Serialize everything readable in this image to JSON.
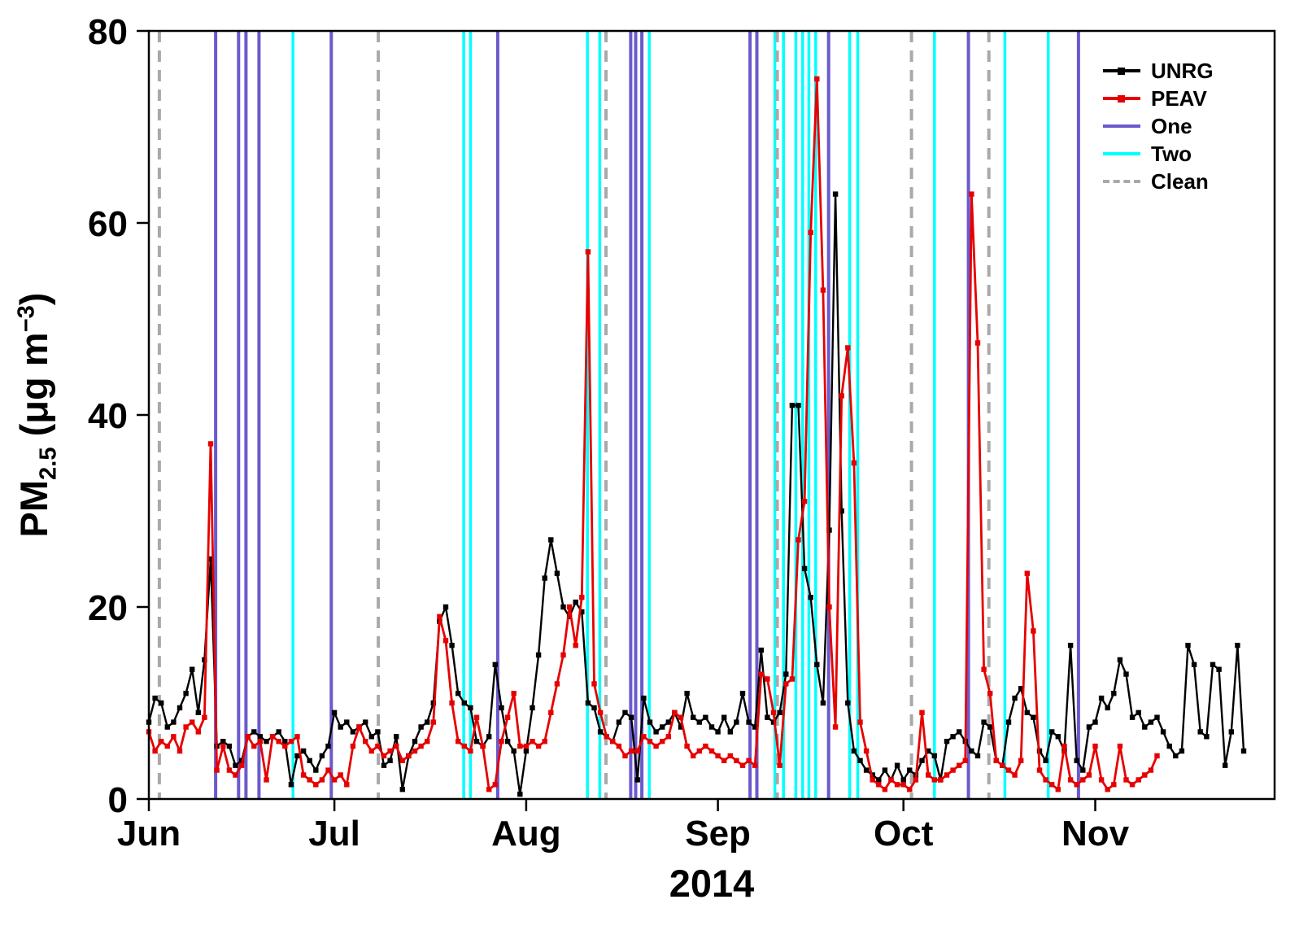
{
  "figure": {
    "x_axis": {
      "title": "2014",
      "tick_labels": [
        "Jun",
        "Jul",
        "Aug",
        "Sep",
        "Oct",
        "Nov"
      ],
      "tick_days": [
        0,
        30,
        61,
        92,
        122,
        153
      ]
    },
    "y_axis": {
      "label_prefix": "PM",
      "label_sub": "2.5",
      "label_mid": " (μg m",
      "label_sup": "−3",
      "label_close": ")",
      "ticks": [
        0,
        20,
        40,
        60,
        80
      ]
    }
  },
  "legend": {
    "items": [
      {
        "label": "UNRG",
        "color": "#000000",
        "style": "solid",
        "marker": "square"
      },
      {
        "label": "PEAV",
        "color": "#e60000",
        "style": "solid",
        "marker": "square"
      },
      {
        "label": "One",
        "color": "#6A5ACD",
        "style": "solid",
        "marker": "none"
      },
      {
        "label": "Two",
        "color": "#00FFFF",
        "style": "solid",
        "marker": "none"
      },
      {
        "label": "Clean",
        "color": "#A9A9A9",
        "style": "dashed",
        "marker": "none"
      }
    ]
  },
  "chart_data": {
    "type": "line",
    "title": "",
    "xlabel": "2014",
    "ylabel": "PM2.5 (μg m−3)",
    "x_unit": "days since 2014-06-01 (daily values, Jun 1 – Nov 25)",
    "x_range_days": [
      0,
      182
    ],
    "ylim": [
      0,
      80
    ],
    "x_tick_labels": [
      "Jun",
      "Jul",
      "Aug",
      "Sep",
      "Oct",
      "Nov"
    ],
    "x_tick_days": [
      0,
      30,
      61,
      92,
      122,
      153
    ],
    "y_ticks": [
      0,
      20,
      40,
      60,
      80
    ],
    "grid": false,
    "legend_position": "top-right inside",
    "series": [
      {
        "name": "UNRG",
        "color": "#000000",
        "marker": "square",
        "start_day": 0,
        "values": [
          8,
          10.5,
          10,
          7.5,
          8,
          9.5,
          11,
          13.5,
          9,
          14.5,
          25,
          5.5,
          6,
          5.5,
          3.5,
          4,
          6.5,
          7,
          6.5,
          6,
          6.5,
          7,
          6,
          1.5,
          4.5,
          5,
          4,
          3,
          4.5,
          5.5,
          9,
          7.5,
          8,
          7,
          7.5,
          8,
          6.5,
          7,
          3.5,
          4,
          6.5,
          1,
          4.5,
          6,
          7.5,
          8,
          10,
          18.5,
          20,
          16,
          11,
          10,
          9.5,
          6,
          5.5,
          6.5,
          14,
          9.5,
          6,
          5,
          0.5,
          5,
          9.5,
          15,
          23,
          27,
          23.5,
          20,
          19,
          20.5,
          19.5,
          10,
          9.5,
          7,
          6.5,
          6,
          8,
          9,
          8.5,
          2,
          10.5,
          8,
          7,
          7.5,
          8,
          9,
          7.5,
          11,
          8.5,
          8,
          8.5,
          7.5,
          7,
          8.5,
          7,
          8,
          11,
          8,
          7.5,
          15.5,
          8.5,
          8,
          9,
          13,
          41,
          41,
          24,
          21,
          14,
          10,
          28,
          63,
          30,
          10,
          5,
          4,
          3,
          2.5,
          2,
          3,
          2,
          3.5,
          2,
          3,
          2.5,
          4,
          5,
          4.5,
          2,
          6,
          6.5,
          7,
          6,
          5,
          4.5,
          8,
          7.5,
          4,
          3.5,
          8,
          10.5,
          11.5,
          9,
          8.5,
          5,
          4,
          7,
          6.5,
          5,
          16,
          4,
          3,
          7.5,
          8,
          10.5,
          9.5,
          11,
          14.5,
          13,
          8.5,
          9,
          7.5,
          8,
          8.5,
          7,
          5.5,
          4.5,
          5,
          16,
          14,
          7,
          6.5,
          14,
          13.5,
          3.5,
          7,
          16,
          5
        ]
      },
      {
        "name": "PEAV",
        "color": "#e60000",
        "marker": "square",
        "start_day": 0,
        "values": [
          7,
          5,
          6,
          5.5,
          6.5,
          5,
          7.5,
          8,
          7,
          8.5,
          37,
          3,
          5.5,
          3,
          2.5,
          3.5,
          6.5,
          5.5,
          6,
          2,
          6.5,
          6,
          5.5,
          6,
          6.5,
          2.5,
          2,
          1.5,
          2,
          3,
          2,
          2.5,
          1.5,
          5.5,
          7.5,
          6,
          5,
          5.5,
          4.5,
          5,
          5.5,
          4,
          4.5,
          5,
          5.5,
          6,
          8,
          19,
          16.5,
          10,
          6,
          5.5,
          5,
          8.5,
          5.5,
          1,
          1.5,
          6,
          8.5,
          11,
          5.5,
          5.5,
          6,
          5.5,
          6,
          9,
          12,
          15,
          20,
          16,
          21,
          57,
          12,
          9,
          6.5,
          6,
          5.5,
          4.5,
          5,
          5,
          6.5,
          6,
          5.5,
          6,
          6.5,
          9,
          8.5,
          5.5,
          4.5,
          5,
          5.5,
          5,
          4.5,
          4,
          4.5,
          4,
          3.5,
          4,
          3.5,
          13,
          12.5,
          9,
          3.5,
          12,
          12.5,
          27,
          31,
          59,
          75,
          53,
          20,
          7.5,
          42,
          47,
          35,
          8,
          5,
          2,
          1.5,
          1,
          2,
          1.5,
          1.5,
          1,
          2,
          9,
          2.5,
          2,
          2,
          2.5,
          3,
          3.5,
          4,
          63,
          47.5,
          13.5,
          11,
          4,
          3.5,
          3,
          2.5,
          4,
          23.5,
          17.5,
          3,
          2,
          1.5,
          1,
          5.5,
          2,
          1.5,
          2,
          2.5,
          5.5,
          2,
          1,
          1.5,
          5.5,
          2,
          1.5,
          2,
          2.5,
          3,
          4.5,
          null,
          null,
          null,
          null,
          null,
          null,
          null,
          null,
          null,
          null,
          null,
          null,
          null,
          null
        ]
      }
    ],
    "event_lines": [
      {
        "name": "One",
        "color": "#6A5ACD",
        "style": "solid",
        "days": [
          10.8,
          14.5,
          15.7,
          17.8,
          29.5,
          56.4,
          77.9,
          78.7,
          79.7,
          97.2,
          98.3,
          109.9,
          132.5,
          150.3
        ]
      },
      {
        "name": "Two",
        "color": "#00FFFF",
        "style": "solid",
        "days": [
          23.3,
          50.9,
          52.0,
          70.9,
          72.9,
          80.9,
          101.2,
          102.6,
          104.6,
          105.7,
          106.7,
          107.8,
          113.3,
          114.6,
          127.0,
          138.4,
          145.4
        ]
      },
      {
        "name": "Clean",
        "color": "#A9A9A9",
        "style": "dashed",
        "days": [
          1.7,
          37.1,
          73.9,
          101.6,
          123.3,
          135.8
        ]
      }
    ]
  }
}
